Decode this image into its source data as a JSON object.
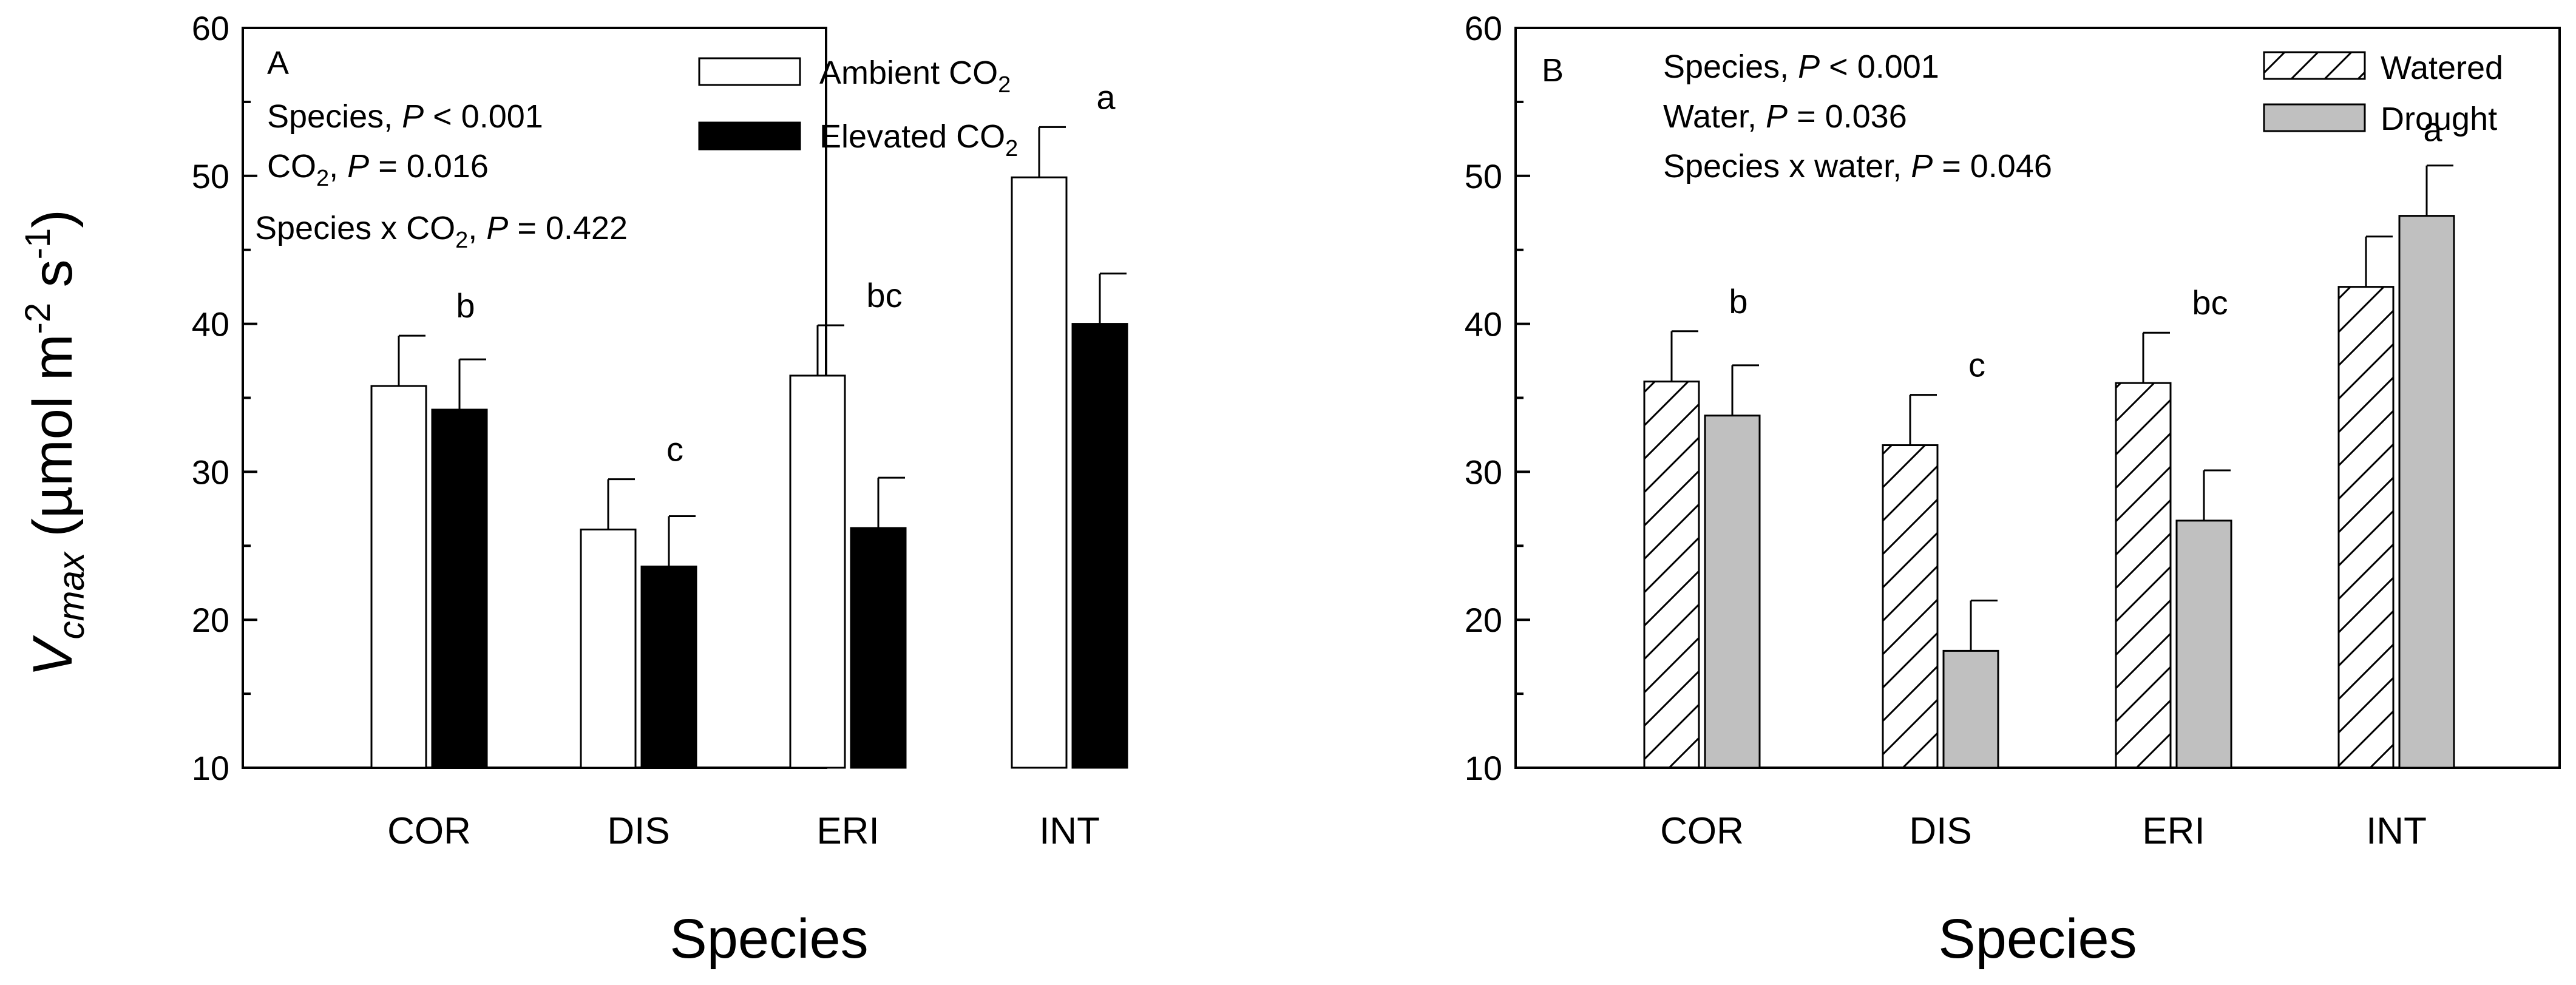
{
  "y_axis_label": {
    "main": "V",
    "sub": "cmax",
    "unit": " (µmol m",
    "exp1": "-2",
    "mid": " s",
    "exp2": "-1",
    "end": ")"
  },
  "chart_data": [
    {
      "type": "bar",
      "panel_letter": "A",
      "xlabel": "Species",
      "ylim": [
        10,
        60
      ],
      "yticks": [
        "10",
        "20",
        "30",
        "40",
        "50",
        "60"
      ],
      "categories": [
        "COR",
        "DIS",
        "ERI",
        "INT"
      ],
      "series": [
        {
          "name": "Ambient CO",
          "sub": "2",
          "values": [
            35.8,
            26.1,
            36.5,
            49.9
          ],
          "errors": [
            3.4,
            3.4,
            3.4,
            3.4
          ],
          "fill": "#ffffff",
          "pattern": "none"
        },
        {
          "name": "Elevated CO",
          "sub": "2",
          "values": [
            34.2,
            23.6,
            26.2,
            40.0
          ],
          "errors": [
            3.4,
            3.4,
            3.4,
            3.4
          ],
          "fill": "#000000",
          "pattern": "none"
        }
      ],
      "letters": [
        "b",
        "c",
        "bc",
        "a"
      ],
      "stats": [
        {
          "pre": "Species, ",
          "p": "P",
          "post": " < 0.001"
        },
        {
          "pre": "CO",
          "sub": "2",
          "mid": ", ",
          "p": "P",
          "post": "  = 0.016"
        },
        {
          "pre": "Species x CO",
          "sub": "2",
          "mid": ", ",
          "p": "P",
          "post": " = 0.422"
        }
      ]
    },
    {
      "type": "bar",
      "panel_letter": "B",
      "xlabel": "Species",
      "ylim": [
        10,
        60
      ],
      "yticks": [
        "10",
        "20",
        "30",
        "40",
        "50",
        "60"
      ],
      "categories": [
        "COR",
        "DIS",
        "ERI",
        "INT"
      ],
      "series": [
        {
          "name": "Watered",
          "sub": "",
          "values": [
            36.1,
            31.8,
            36.0,
            42.5
          ],
          "errors": [
            3.4,
            3.4,
            3.4,
            3.4
          ],
          "fill": "#ffffff",
          "pattern": "hatch"
        },
        {
          "name": "Drought",
          "sub": "",
          "values": [
            33.8,
            17.9,
            26.7,
            47.3
          ],
          "errors": [
            3.4,
            3.4,
            3.4,
            3.4
          ],
          "fill": "#c0c0c0",
          "pattern": "none"
        }
      ],
      "letters": [
        "b",
        "c",
        "bc",
        "a"
      ],
      "stats": [
        {
          "pre": "Species, ",
          "p": "P",
          "post": " < 0.001"
        },
        {
          "pre": "Water, ",
          "p": "P",
          "post": " = 0.036"
        },
        {
          "pre": "Species x water, ",
          "p": "P",
          "post": " = 0.046"
        }
      ]
    }
  ]
}
